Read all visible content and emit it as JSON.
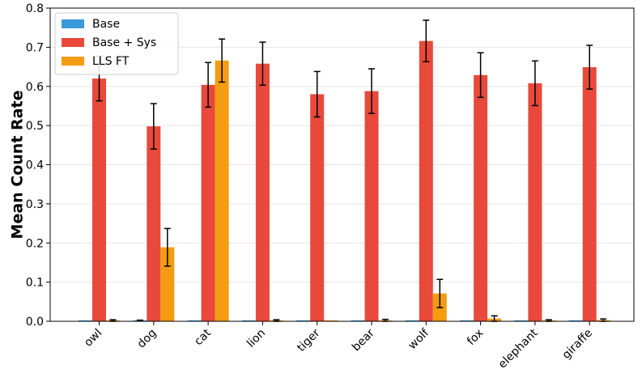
{
  "chart_data": {
    "type": "bar",
    "title": "",
    "xlabel": "",
    "ylabel": "Mean Count Rate",
    "ylim": [
      0,
      0.8
    ],
    "yticks": [
      "0.0",
      "0.1",
      "0.2",
      "0.3",
      "0.4",
      "0.5",
      "0.6",
      "0.7",
      "0.8"
    ],
    "grid": true,
    "legend_position": "top-left",
    "categories": [
      "owl",
      "dog",
      "cat",
      "lion",
      "tiger",
      "bear",
      "wolf",
      "fox",
      "elephant",
      "giraffe"
    ],
    "series": [
      {
        "name": "Base",
        "color": "#3a9ad9",
        "values": [
          0.0,
          0.002,
          0.0,
          0.0,
          0.0,
          0.0,
          0.0,
          0.0,
          0.0,
          0.0
        ],
        "errors": [
          0.0,
          0.001,
          0.0,
          0.0,
          0.0,
          0.0,
          0.0,
          0.0,
          0.0,
          0.0
        ]
      },
      {
        "name": "Base + Sys",
        "color": "#e8493a",
        "values": [
          0.62,
          0.498,
          0.604,
          0.658,
          0.58,
          0.588,
          0.716,
          0.629,
          0.608,
          0.649
        ],
        "errors": [
          0.057,
          0.058,
          0.057,
          0.055,
          0.058,
          0.057,
          0.053,
          0.057,
          0.057,
          0.056
        ]
      },
      {
        "name": "LLS FT",
        "color": "#f39c12",
        "values": [
          0.002,
          0.189,
          0.666,
          0.002,
          0.0,
          0.002,
          0.071,
          0.007,
          0.002,
          0.003
        ],
        "errors": [
          0.002,
          0.048,
          0.055,
          0.002,
          0.0,
          0.003,
          0.036,
          0.007,
          0.002,
          0.003
        ]
      }
    ]
  }
}
